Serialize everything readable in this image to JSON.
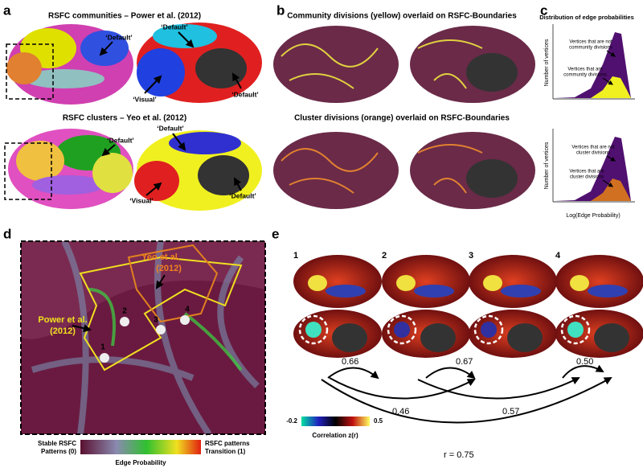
{
  "panels": {
    "a": {
      "letter": "a",
      "title_top": "RSFC communities – Power et al. (2012)",
      "labels_top": [
        "‘Default’",
        "‘Default’",
        "‘Visual’",
        "‘Default’"
      ],
      "title_bottom": "RSFC clusters – Yeo et al. (2012)",
      "labels_bottom": [
        "‘Default’",
        "‘Default’",
        "‘Visual’",
        "‘Default’"
      ]
    },
    "b": {
      "letter": "b",
      "title_top": "Community divisions (yellow) overlaid on RSFC-Boundaries",
      "title_bottom": "Cluster divisions (orange) overlaid on RSFC-Boundaries"
    },
    "c": {
      "letter": "c",
      "title": "Distribution of edge probabilities",
      "y_label": "Number of vertices",
      "x_label": "Log(Edge Probability)",
      "top_not": [
        "Vertices that are not",
        "community divisions"
      ],
      "top_are": [
        "Vertices that are",
        "community divisions"
      ],
      "bottom_not": [
        "Vertices that are not",
        "cluster divisions"
      ],
      "bottom_are": [
        "Vertices that are",
        "cluster divisions"
      ]
    },
    "d": {
      "letter": "d",
      "yeo": [
        "Yeo et al.",
        "(2012)"
      ],
      "power": [
        "Power et al.",
        "(2012)"
      ],
      "points": [
        "1",
        "2",
        "3",
        "4"
      ],
      "colorbar_left": [
        "Stable RSFC",
        "Patterns (0)"
      ],
      "colorbar_right": [
        "RSFC patterns",
        "Transition (1)"
      ],
      "colorbar_label": "Edge Probability"
    },
    "e": {
      "letter": "e",
      "seeds": [
        "1",
        "2",
        "3",
        "4"
      ],
      "correlations": [
        "0.66",
        "0.67",
        "0.50",
        "0.46",
        "0.57",
        "r = 0.75"
      ],
      "colorbar_min": "-0.2",
      "colorbar_max": "0.5",
      "colorbar_label": "Correlation z(r)"
    }
  }
}
